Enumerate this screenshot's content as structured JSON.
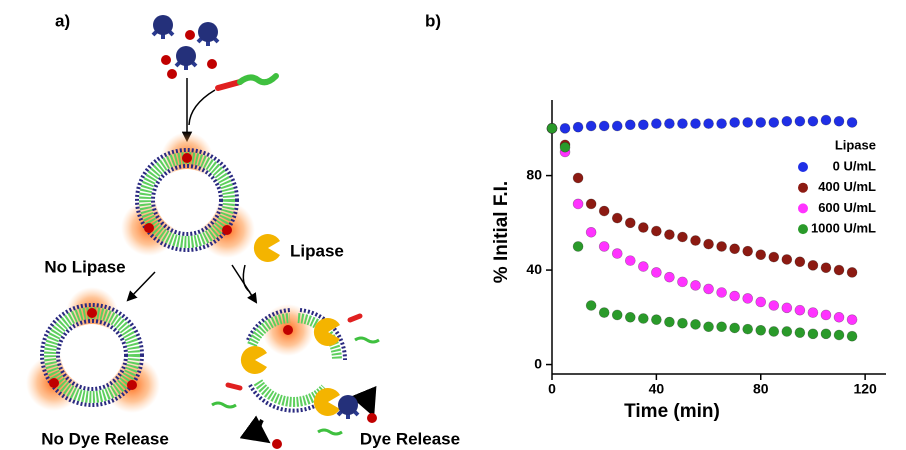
{
  "panel_a": {
    "label": "a)",
    "no_lipase": "No Lipase",
    "lipase": "Lipase",
    "no_dye_release": "No Dye Release",
    "dye_release": "Dye Release"
  },
  "chart_data": {
    "type": "scatter",
    "panel_label": "b)",
    "x_label": "Time (min)",
    "y_label": "% Initial F.I.",
    "xlim": [
      0,
      128
    ],
    "ylim": [
      -4,
      112
    ],
    "xticks": [
      0,
      40,
      80,
      120
    ],
    "yticks": [
      0,
      40,
      80
    ],
    "legend_title": "Lipase",
    "legend_position": "upper right",
    "x": [
      0,
      5,
      10,
      15,
      20,
      25,
      30,
      35,
      40,
      45,
      50,
      55,
      60,
      65,
      70,
      75,
      80,
      85,
      90,
      95,
      100,
      105,
      110,
      115
    ],
    "series": [
      {
        "name": "0 U/mL",
        "color": "#1f2fe6",
        "values": [
          100,
          100,
          100.5,
          101,
          101,
          101,
          101.5,
          101.5,
          102,
          102,
          102,
          102,
          102,
          102,
          102.5,
          102.5,
          102.5,
          102.5,
          103,
          103,
          103,
          103.5,
          103,
          102.5
        ]
      },
      {
        "name": "400 U/mL",
        "color": "#8c1a12",
        "values": [
          100,
          93,
          79,
          68,
          65,
          62,
          60,
          58,
          56.5,
          55,
          54,
          52.5,
          51,
          50,
          49,
          48,
          46.5,
          45.5,
          44.5,
          43.5,
          42,
          41,
          40,
          39
        ]
      },
      {
        "name": "600 U/mL",
        "color": "#ff33ff",
        "values": [
          100,
          90,
          68,
          56,
          50,
          47,
          44,
          41.5,
          39,
          37,
          35,
          33.5,
          32,
          30.5,
          29,
          28,
          26.5,
          25,
          24,
          23,
          22,
          21,
          20,
          19
        ]
      },
      {
        "name": "1000 U/mL",
        "color": "#2a9a2a",
        "values": [
          100,
          92,
          50,
          25,
          22,
          21,
          20,
          19.5,
          19,
          18,
          17.5,
          17,
          16,
          16,
          15.5,
          15,
          14.5,
          14,
          14,
          13.5,
          13,
          13,
          12.5,
          12
        ]
      }
    ]
  }
}
